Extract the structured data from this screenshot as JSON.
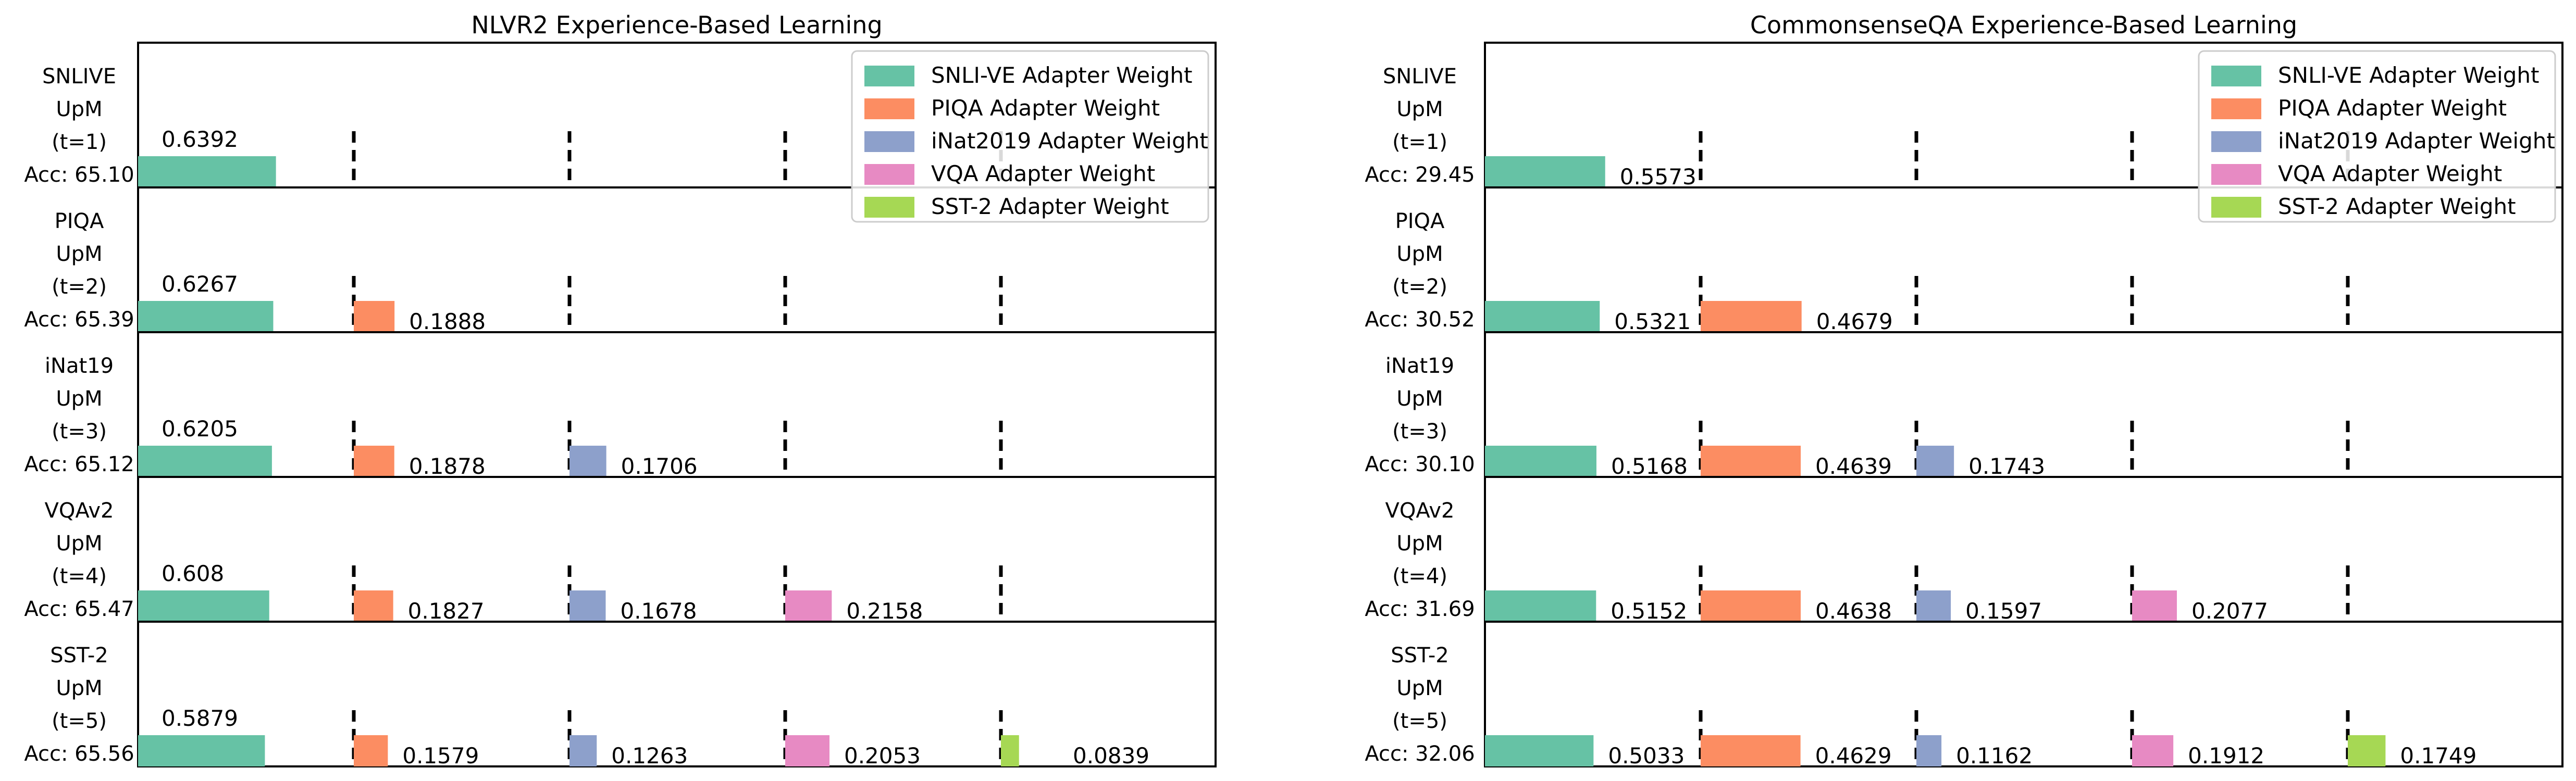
{
  "colors": {
    "SNLI-VE": "#66c2a5",
    "PIQA": "#fc8d62",
    "iNat2019": "#8da0cb",
    "VQA": "#e78ac3",
    "SST-2": "#a6d854",
    "frame": "#000000",
    "divider": "#000000"
  },
  "legend_entries": [
    "SNLI-VE Adapter Weight",
    "PIQA Adapter Weight",
    "iNat2019 Adapter Weight",
    "VQA Adapter Weight",
    "SST-2 Adapter Weight"
  ],
  "chart_data": [
    {
      "type": "bar",
      "title": "NLVR2 Experience-Based Learning",
      "legend_position": "top-right",
      "series_names": [
        "SNLI-VE Adapter Weight",
        "PIQA Adapter Weight",
        "iNat2019 Adapter Weight",
        "VQA Adapter Weight",
        "SST-2 Adapter Weight"
      ],
      "rows": [
        {
          "label": [
            "SNLIVE",
            "UpM",
            "(t=1)",
            "Acc: 65.10"
          ],
          "values": [
            0.6392
          ]
        },
        {
          "label": [
            "PIQA",
            "UpM",
            "(t=2)",
            "Acc: 65.39"
          ],
          "values": [
            0.6267,
            0.1888
          ]
        },
        {
          "label": [
            "iNat19",
            "UpM",
            "(t=3)",
            "Acc: 65.12"
          ],
          "values": [
            0.6205,
            0.1878,
            0.1706
          ]
        },
        {
          "label": [
            "VQAv2",
            "UpM",
            "(t=4)",
            "Acc: 65.47"
          ],
          "values": [
            0.608,
            0.1827,
            0.1678,
            0.2158
          ]
        },
        {
          "label": [
            "SST-2",
            "UpM",
            "(t=5)",
            "Acc: 65.56"
          ],
          "values": [
            0.5879,
            0.1579,
            0.1263,
            0.2053,
            0.0839
          ]
        }
      ]
    },
    {
      "type": "bar",
      "title": "CommonsenseQA Experience-Based Learning",
      "legend_position": "top-right",
      "series_names": [
        "SNLI-VE Adapter Weight",
        "PIQA Adapter Weight",
        "iNat2019 Adapter Weight",
        "VQA Adapter Weight",
        "SST-2 Adapter Weight"
      ],
      "rows": [
        {
          "label": [
            "SNLIVE",
            "UpM",
            "(t=1)",
            "Acc: 29.45"
          ],
          "values": [
            0.5573
          ]
        },
        {
          "label": [
            "PIQA",
            "UpM",
            "(t=2)",
            "Acc: 30.52"
          ],
          "values": [
            0.5321,
            0.4679
          ]
        },
        {
          "label": [
            "iNat19",
            "UpM",
            "(t=3)",
            "Acc: 30.10"
          ],
          "values": [
            0.5168,
            0.4639,
            0.1743
          ]
        },
        {
          "label": [
            "VQAv2",
            "UpM",
            "(t=4)",
            "Acc: 31.69"
          ],
          "values": [
            0.5152,
            0.4638,
            0.1597,
            0.2077
          ]
        },
        {
          "label": [
            "SST-2",
            "UpM",
            "(t=5)",
            "Acc: 32.06"
          ],
          "values": [
            0.5033,
            0.4629,
            0.1162,
            0.1912,
            0.1749
          ]
        }
      ]
    }
  ]
}
